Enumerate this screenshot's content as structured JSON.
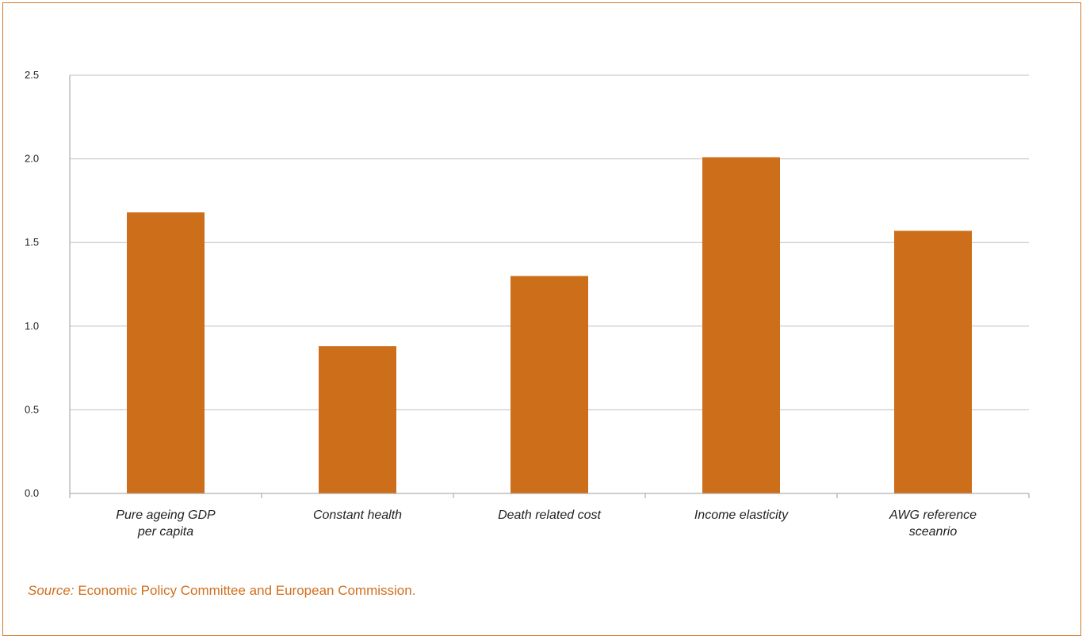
{
  "colors": {
    "bar": "#cd6e1a",
    "frame": "#d4782a",
    "gridline": "#bfbfbf",
    "axis": "#9e9e9e",
    "source_text": "#d06f1e"
  },
  "chart_data": {
    "type": "bar",
    "categories": [
      [
        "Pure ageing GDP",
        "per capita"
      ],
      [
        "Constant health"
      ],
      [
        "Death related cost"
      ],
      [
        "Income elasticity"
      ],
      [
        "AWG reference",
        "sceanrio"
      ]
    ],
    "values": [
      1.68,
      0.88,
      1.3,
      2.01,
      1.57
    ],
    "ylim": [
      0,
      2.5
    ],
    "yticks": [
      "0.0",
      "0.5",
      "1.0",
      "1.5",
      "2.0",
      "2.5"
    ],
    "ytick_values": [
      0,
      0.5,
      1.0,
      1.5,
      2.0,
      2.5
    ],
    "grid": true,
    "title": "",
    "xlabel": "",
    "ylabel": ""
  },
  "source": {
    "prefix": "Source:",
    "text": " Economic Policy Committee and European Commission."
  }
}
